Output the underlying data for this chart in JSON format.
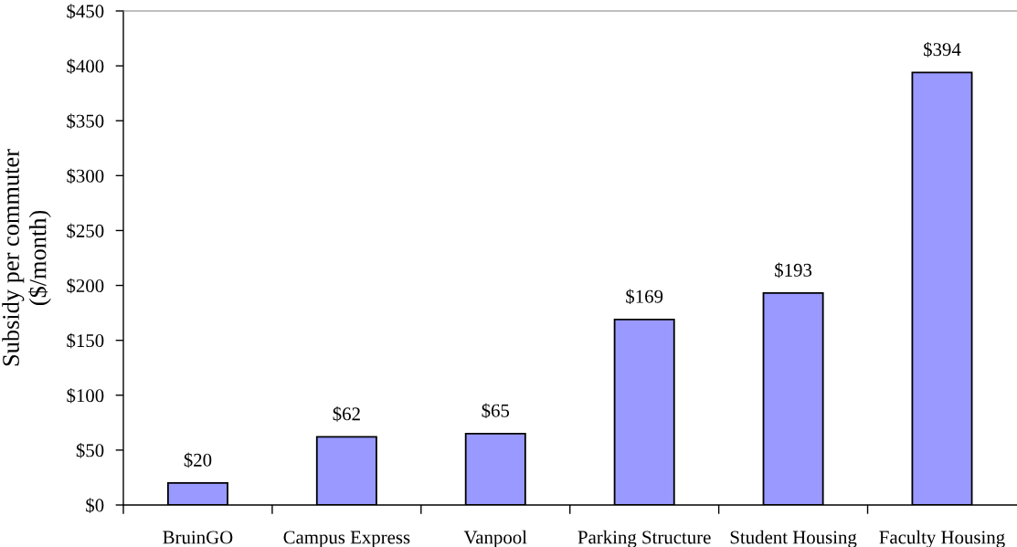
{
  "chart_data": {
    "type": "bar",
    "ylabel": "Subsidy per commuter\n($/month)",
    "categories": [
      "BruinGO",
      "Campus Express",
      "Vanpool",
      "Parking Structure",
      "Student Housing",
      "Faculty Housing"
    ],
    "values": [
      20,
      62,
      65,
      169,
      193,
      394
    ],
    "value_labels": [
      "$20",
      "$62",
      "$65",
      "$169",
      "$193",
      "$394"
    ],
    "color": "#9999ff",
    "ylim": [
      0,
      450
    ],
    "yticks": [
      {
        "value": 0,
        "label": "$0"
      },
      {
        "value": 50,
        "label": "$50"
      },
      {
        "value": 100,
        "label": "$100"
      },
      {
        "value": 150,
        "label": "$150"
      },
      {
        "value": 200,
        "label": "$200"
      },
      {
        "value": 250,
        "label": "$250"
      },
      {
        "value": 300,
        "label": "$300"
      },
      {
        "value": 350,
        "label": "$350"
      },
      {
        "value": 400,
        "label": "$400"
      },
      {
        "value": 450,
        "label": "$450"
      }
    ],
    "grid": false
  }
}
